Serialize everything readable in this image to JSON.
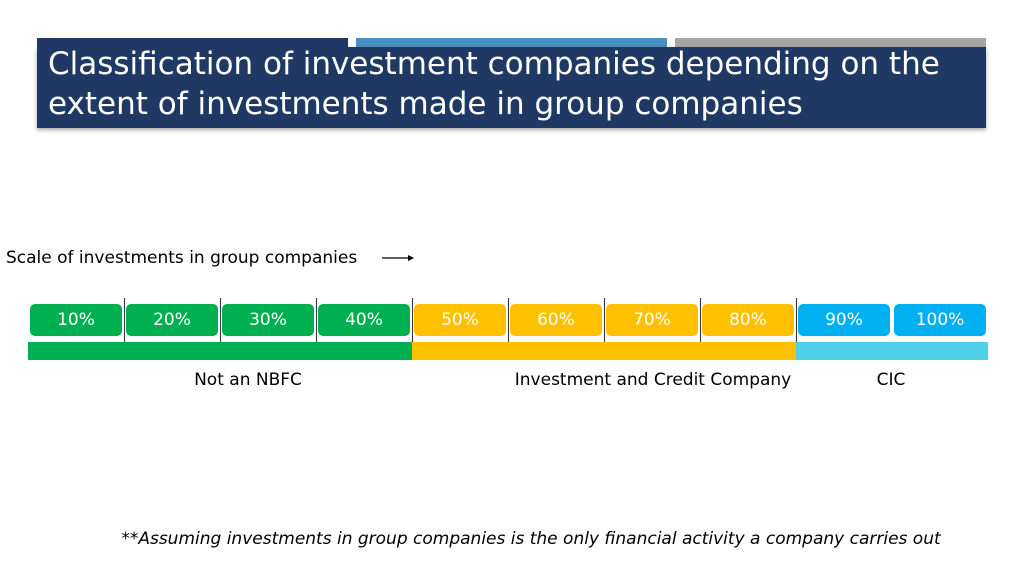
{
  "header": {
    "title": "Classification of investment companies depending on the extent of investments made in group companies"
  },
  "scale": {
    "label": "Scale of investments in group companies",
    "steps": [
      "10%",
      "20%",
      "30%",
      "40%",
      "50%",
      "60%",
      "70%",
      "80%",
      "90%",
      "100%"
    ]
  },
  "bands": [
    "Not an NBFC",
    "Investment and Credit Company",
    "CIC"
  ],
  "footnote": "**Assuming investments in group companies is the only financial activity a company carries out"
}
